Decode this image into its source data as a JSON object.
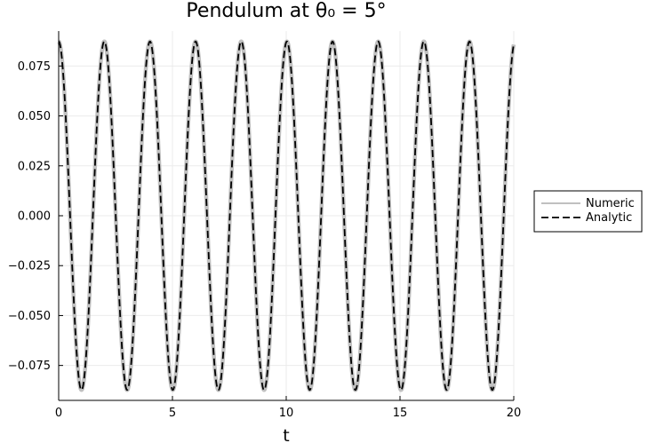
{
  "chart_data": {
    "type": "line",
    "title": "Pendulum at θ₀ = 5°",
    "xlabel": "t",
    "ylabel": "",
    "xlim": [
      0,
      20
    ],
    "ylim": [
      -0.0925,
      0.0925
    ],
    "xticks": [
      0,
      5,
      10,
      15,
      20
    ],
    "xtick_labels": [
      "0",
      "5",
      "10",
      "15",
      "20"
    ],
    "yticks": [
      0.075,
      0.05,
      0.025,
      0.0,
      -0.025,
      -0.05,
      -0.075
    ],
    "ytick_labels": [
      "0.075",
      "0.050",
      "0.025",
      "0.000",
      "−0.025",
      "−0.050",
      "−0.075"
    ],
    "grid": true,
    "legend_position": "outside-right",
    "amplitude": 0.0873,
    "period": 2.006,
    "series": [
      {
        "name": "Numeric",
        "color": "#c0c0c0",
        "style": "solid"
      },
      {
        "name": "Analytic",
        "color": "#000000",
        "style": "dashed"
      }
    ]
  }
}
